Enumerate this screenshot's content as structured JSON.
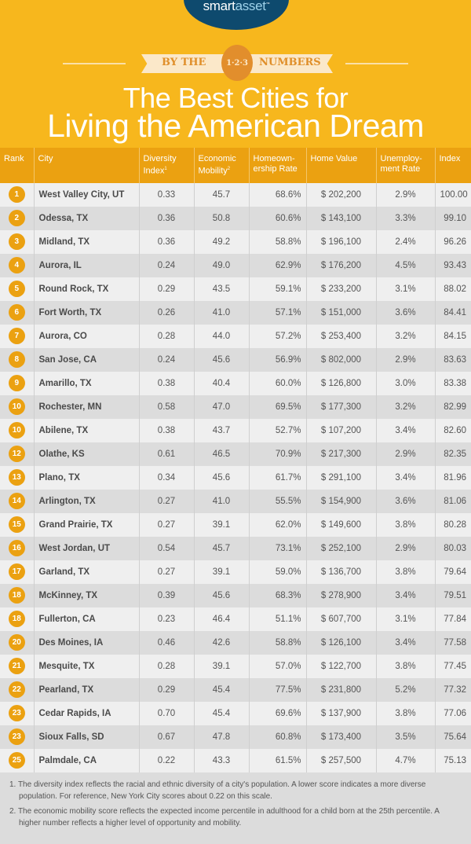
{
  "header": {
    "logo_main": "smart",
    "logo_accent": "asset",
    "logo_tm": "™",
    "banner_left": "BY THE",
    "banner_badge": "1·2·3",
    "banner_right": "NUMBERS",
    "title_line1": "The Best Cities for",
    "title_line2": "Living the American Dream"
  },
  "colors": {
    "header_bg": "#f7b71d",
    "table_header": "#eba111",
    "logo_bg": "#0e4a6e",
    "badge": "#e28e2c"
  },
  "table": {
    "columns": [
      "Rank",
      "City",
      "Diversity Index",
      "Economic Mobility",
      "Homeown-ership Rate",
      "Home Value",
      "Unemploy-ment Rate",
      "Index"
    ],
    "column_superscripts": {
      "Diversity Index": "1",
      "Economic Mobility": "2"
    },
    "rows": [
      {
        "rank": "1",
        "city": "West Valley City, UT",
        "diversity": "0.33",
        "mobility": "45.7",
        "homeownership": "68.6%",
        "home_value": "$ 202,200",
        "unemployment": "2.9%",
        "index": "100.00"
      },
      {
        "rank": "2",
        "city": "Odessa, TX",
        "diversity": "0.36",
        "mobility": "50.8",
        "homeownership": "60.6%",
        "home_value": "$ 143,100",
        "unemployment": "3.3%",
        "index": "99.10"
      },
      {
        "rank": "3",
        "city": "Midland, TX",
        "diversity": "0.36",
        "mobility": "49.2",
        "homeownership": "58.8%",
        "home_value": "$ 196,100",
        "unemployment": "2.4%",
        "index": "96.26"
      },
      {
        "rank": "4",
        "city": "Aurora, IL",
        "diversity": "0.24",
        "mobility": "49.0",
        "homeownership": "62.9%",
        "home_value": "$ 176,200",
        "unemployment": "4.5%",
        "index": "93.43"
      },
      {
        "rank": "5",
        "city": "Round Rock, TX",
        "diversity": "0.29",
        "mobility": "43.5",
        "homeownership": "59.1%",
        "home_value": "$ 233,200",
        "unemployment": "3.1%",
        "index": "88.02"
      },
      {
        "rank": "6",
        "city": "Fort Worth, TX",
        "diversity": "0.26",
        "mobility": "41.0",
        "homeownership": "57.1%",
        "home_value": "$ 151,000",
        "unemployment": "3.6%",
        "index": "84.41"
      },
      {
        "rank": "7",
        "city": "Aurora, CO",
        "diversity": "0.28",
        "mobility": "44.0",
        "homeownership": "57.2%",
        "home_value": "$ 253,400",
        "unemployment": "3.2%",
        "index": "84.15"
      },
      {
        "rank": "8",
        "city": "San Jose, CA",
        "diversity": "0.24",
        "mobility": "45.6",
        "homeownership": "56.9%",
        "home_value": "$ 802,000",
        "unemployment": "2.9%",
        "index": "83.63"
      },
      {
        "rank": "9",
        "city": "Amarillo, TX",
        "diversity": "0.38",
        "mobility": "40.4",
        "homeownership": "60.0%",
        "home_value": "$ 126,800",
        "unemployment": "3.0%",
        "index": "83.38"
      },
      {
        "rank": "10",
        "city": "Rochester, MN",
        "diversity": "0.58",
        "mobility": "47.0",
        "homeownership": "69.5%",
        "home_value": "$ 177,300",
        "unemployment": "3.2%",
        "index": "82.99"
      },
      {
        "rank": "10",
        "city": "Abilene, TX",
        "diversity": "0.38",
        "mobility": "43.7",
        "homeownership": "52.7%",
        "home_value": "$ 107,200",
        "unemployment": "3.4%",
        "index": "82.60"
      },
      {
        "rank": "12",
        "city": "Olathe, KS",
        "diversity": "0.61",
        "mobility": "46.5",
        "homeownership": "70.9%",
        "home_value": "$ 217,300",
        "unemployment": "2.9%",
        "index": "82.35"
      },
      {
        "rank": "13",
        "city": "Plano, TX",
        "diversity": "0.34",
        "mobility": "45.6",
        "homeownership": "61.7%",
        "home_value": "$ 291,100",
        "unemployment": "3.4%",
        "index": "81.96"
      },
      {
        "rank": "14",
        "city": "Arlington, TX",
        "diversity": "0.27",
        "mobility": "41.0",
        "homeownership": "55.5%",
        "home_value": "$ 154,900",
        "unemployment": "3.6%",
        "index": "81.06"
      },
      {
        "rank": "15",
        "city": "Grand Prairie, TX",
        "diversity": "0.27",
        "mobility": "39.1",
        "homeownership": "62.0%",
        "home_value": "$ 149,600",
        "unemployment": "3.8%",
        "index": "80.28"
      },
      {
        "rank": "16",
        "city": "West Jordan, UT",
        "diversity": "0.54",
        "mobility": "45.7",
        "homeownership": "73.1%",
        "home_value": "$ 252,100",
        "unemployment": "2.9%",
        "index": "80.03"
      },
      {
        "rank": "17",
        "city": "Garland, TX",
        "diversity": "0.27",
        "mobility": "39.1",
        "homeownership": "59.0%",
        "home_value": "$ 136,700",
        "unemployment": "3.8%",
        "index": "79.64"
      },
      {
        "rank": "18",
        "city": "McKinney, TX",
        "diversity": "0.39",
        "mobility": "45.6",
        "homeownership": "68.3%",
        "home_value": "$ 278,900",
        "unemployment": "3.4%",
        "index": "79.51"
      },
      {
        "rank": "18",
        "city": "Fullerton, CA",
        "diversity": "0.23",
        "mobility": "46.4",
        "homeownership": "51.1%",
        "home_value": "$ 607,700",
        "unemployment": "3.1%",
        "index": "77.84"
      },
      {
        "rank": "20",
        "city": "Des Moines, IA",
        "diversity": "0.46",
        "mobility": "42.6",
        "homeownership": "58.8%",
        "home_value": "$ 126,100",
        "unemployment": "3.4%",
        "index": "77.58"
      },
      {
        "rank": "21",
        "city": "Mesquite, TX",
        "diversity": "0.28",
        "mobility": "39.1",
        "homeownership": "57.0%",
        "home_value": "$ 122,700",
        "unemployment": "3.8%",
        "index": "77.45"
      },
      {
        "rank": "22",
        "city": "Pearland, TX",
        "diversity": "0.29",
        "mobility": "45.4",
        "homeownership": "77.5%",
        "home_value": "$ 231,800",
        "unemployment": "5.2%",
        "index": "77.32"
      },
      {
        "rank": "23",
        "city": "Cedar Rapids, IA",
        "diversity": "0.70",
        "mobility": "45.4",
        "homeownership": "69.6%",
        "home_value": "$ 137,900",
        "unemployment": "3.8%",
        "index": "77.06"
      },
      {
        "rank": "23",
        "city": "Sioux Falls, SD",
        "diversity": "0.67",
        "mobility": "47.8",
        "homeownership": "60.8%",
        "home_value": "$ 173,400",
        "unemployment": "3.5%",
        "index": "75.64"
      },
      {
        "rank": "25",
        "city": "Palmdale, CA",
        "diversity": "0.22",
        "mobility": "43.3",
        "homeownership": "61.5%",
        "home_value": "$ 257,500",
        "unemployment": "4.7%",
        "index": "75.13"
      }
    ]
  },
  "footnotes": [
    "1. The diversity index reflects the racial and ethnic diversity of a city's population. A lower score indicates a more diverse population. For reference, New York City scores about 0.22 on this scale.",
    "2. The economic mobility score reflects the expected income percentile in adulthood for a child born at the 25th percentile. A higher number reflects a higher level of opportunity and mobility."
  ],
  "chart_data": {
    "type": "table",
    "title": "The Best Cities for Living the American Dream",
    "columns": [
      "Rank",
      "City",
      "Diversity Index",
      "Economic Mobility",
      "Homeownership Rate",
      "Home Value",
      "Unemployment Rate",
      "Index"
    ],
    "rows": [
      [
        1,
        "West Valley City, UT",
        0.33,
        45.7,
        68.6,
        202200,
        2.9,
        100.0
      ],
      [
        2,
        "Odessa, TX",
        0.36,
        50.8,
        60.6,
        143100,
        3.3,
        99.1
      ],
      [
        3,
        "Midland, TX",
        0.36,
        49.2,
        58.8,
        196100,
        2.4,
        96.26
      ],
      [
        4,
        "Aurora, IL",
        0.24,
        49.0,
        62.9,
        176200,
        4.5,
        93.43
      ],
      [
        5,
        "Round Rock, TX",
        0.29,
        43.5,
        59.1,
        233200,
        3.1,
        88.02
      ],
      [
        6,
        "Fort Worth, TX",
        0.26,
        41.0,
        57.1,
        151000,
        3.6,
        84.41
      ],
      [
        7,
        "Aurora, CO",
        0.28,
        44.0,
        57.2,
        253400,
        3.2,
        84.15
      ],
      [
        8,
        "San Jose, CA",
        0.24,
        45.6,
        56.9,
        802000,
        2.9,
        83.63
      ],
      [
        9,
        "Amarillo, TX",
        0.38,
        40.4,
        60.0,
        126800,
        3.0,
        83.38
      ],
      [
        10,
        "Rochester, MN",
        0.58,
        47.0,
        69.5,
        177300,
        3.2,
        82.99
      ],
      [
        10,
        "Abilene, TX",
        0.38,
        43.7,
        52.7,
        107200,
        3.4,
        82.6
      ],
      [
        12,
        "Olathe, KS",
        0.61,
        46.5,
        70.9,
        217300,
        2.9,
        82.35
      ],
      [
        13,
        "Plano, TX",
        0.34,
        45.6,
        61.7,
        291100,
        3.4,
        81.96
      ],
      [
        14,
        "Arlington, TX",
        0.27,
        41.0,
        55.5,
        154900,
        3.6,
        81.06
      ],
      [
        15,
        "Grand Prairie, TX",
        0.27,
        39.1,
        62.0,
        149600,
        3.8,
        80.28
      ],
      [
        16,
        "West Jordan, UT",
        0.54,
        45.7,
        73.1,
        252100,
        2.9,
        80.03
      ],
      [
        17,
        "Garland, TX",
        0.27,
        39.1,
        59.0,
        136700,
        3.8,
        79.64
      ],
      [
        18,
        "McKinney, TX",
        0.39,
        45.6,
        68.3,
        278900,
        3.4,
        79.51
      ],
      [
        18,
        "Fullerton, CA",
        0.23,
        46.4,
        51.1,
        607700,
        3.1,
        77.84
      ],
      [
        20,
        "Des Moines, IA",
        0.46,
        42.6,
        58.8,
        126100,
        3.4,
        77.58
      ],
      [
        21,
        "Mesquite, TX",
        0.28,
        39.1,
        57.0,
        122700,
        3.8,
        77.45
      ],
      [
        22,
        "Pearland, TX",
        0.29,
        45.4,
        77.5,
        231800,
        5.2,
        77.32
      ],
      [
        23,
        "Cedar Rapids, IA",
        0.7,
        45.4,
        69.6,
        137900,
        3.8,
        77.06
      ],
      [
        23,
        "Sioux Falls, SD",
        0.67,
        47.8,
        60.8,
        173400,
        3.5,
        75.64
      ],
      [
        25,
        "Palmdale, CA",
        0.22,
        43.3,
        61.5,
        257500,
        4.7,
        75.13
      ]
    ]
  }
}
